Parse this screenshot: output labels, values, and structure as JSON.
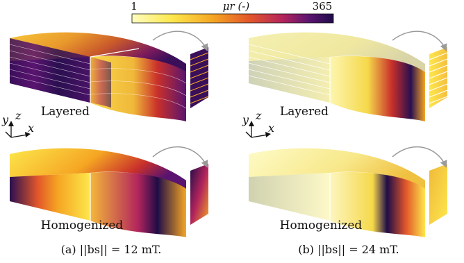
{
  "colorbar": {
    "label": "μr (-)",
    "min_label": "1",
    "max_label": "365",
    "colormap": [
      "#fdfdc0",
      "#fde74c",
      "#f5a623",
      "#e3572a",
      "#b2245c",
      "#5a1470",
      "#1f0c48"
    ]
  },
  "panels": [
    {
      "caption": "(a) ||bs|| = 12 mT.",
      "top_label": "Layered",
      "bottom_label": "Homogenized",
      "axes": {
        "y": "y",
        "z": "z",
        "x": "x"
      }
    },
    {
      "caption": "(b) ||bs|| = 24 mT.",
      "top_label": "Layered",
      "bottom_label": "Homogenized"
    }
  ]
}
